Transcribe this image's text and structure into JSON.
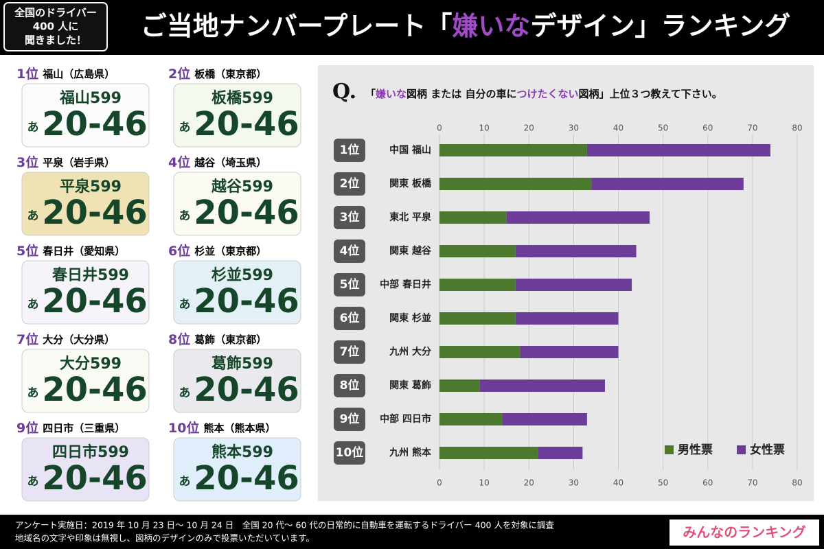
{
  "header": {
    "badge": [
      "全国のドライバー",
      "400 人に",
      "聞きました！"
    ],
    "title_parts": [
      "ご当地ナンバープレート「",
      "嫌いな",
      "デザイン」ランキング"
    ]
  },
  "plates": [
    {
      "rank": "1位",
      "name": "福山",
      "pref": "（広島県）",
      "plate_name": "福山599",
      "kana": "あ",
      "number": "20-46"
    },
    {
      "rank": "2位",
      "name": "板橋",
      "pref": "（東京都）",
      "plate_name": "板橋599",
      "kana": "あ",
      "number": "20-46"
    },
    {
      "rank": "3位",
      "name": "平泉",
      "pref": "（岩手県）",
      "plate_name": "平泉599",
      "kana": "あ",
      "number": "20-46"
    },
    {
      "rank": "4位",
      "name": "越谷",
      "pref": "（埼玉県）",
      "plate_name": "越谷599",
      "kana": "あ",
      "number": "20-46"
    },
    {
      "rank": "5位",
      "name": "春日井",
      "pref": "（愛知県）",
      "plate_name": "春日井599",
      "kana": "あ",
      "number": "20-46"
    },
    {
      "rank": "6位",
      "name": "杉並",
      "pref": "（東京都）",
      "plate_name": "杉並599",
      "kana": "あ",
      "number": "20-46"
    },
    {
      "rank": "7位",
      "name": "大分",
      "pref": "（大分県）",
      "plate_name": "大分599",
      "kana": "あ",
      "number": "20-46"
    },
    {
      "rank": "8位",
      "name": "葛飾",
      "pref": "（東京都）",
      "plate_name": "葛飾599",
      "kana": "あ",
      "number": "20-46"
    },
    {
      "rank": "9位",
      "name": "四日市",
      "pref": "（三重県）",
      "plate_name": "四日市599",
      "kana": "あ",
      "number": "20-46"
    },
    {
      "rank": "10位",
      "name": "熊本",
      "pref": "（熊本県）",
      "plate_name": "熊本599",
      "kana": "あ",
      "number": "20-46"
    }
  ],
  "question": {
    "mark": "Q.",
    "parts": [
      "「",
      "嫌いな",
      "図柄 または 自分の車に",
      "つけたくない",
      "図柄」上位３つ教えて下さい。"
    ]
  },
  "chart_data": {
    "type": "stacked-bar-horizontal",
    "ranks": [
      "1位",
      "2位",
      "3位",
      "4位",
      "5位",
      "6位",
      "7位",
      "8位",
      "9位",
      "10位"
    ],
    "categories": [
      "中国 福山",
      "関東 板橋",
      "東北 平泉",
      "関東 越谷",
      "中部 春日井",
      "関東 杉並",
      "九州 大分",
      "関東 葛飾",
      "中部 四日市",
      "九州 熊本"
    ],
    "series": [
      {
        "name": "男性票",
        "color": "#4b7a2e",
        "values": [
          33,
          34,
          15,
          17,
          17,
          17,
          18,
          9,
          14,
          22
        ]
      },
      {
        "name": "女性票",
        "color": "#6b3d98",
        "values": [
          41,
          34,
          32,
          27,
          26,
          23,
          22,
          28,
          19,
          10
        ]
      }
    ],
    "xlim": [
      0,
      80
    ],
    "xticks": [
      0,
      10,
      20,
      30,
      40,
      50,
      60,
      70,
      80
    ],
    "grid": true,
    "legend": "bottom-right"
  },
  "footer": {
    "lines": [
      "アンケート実施日：2019 年 10 月 23 日～ 10 月 24 日　全国 20 代～ 60 代の日常的に自動車を運転するドライバー 400 人を対象に調査",
      "地域名の文字や印象は無視し、図柄のデザインのみで投票いただいています。"
    ],
    "logo": "みんなのランキング"
  }
}
